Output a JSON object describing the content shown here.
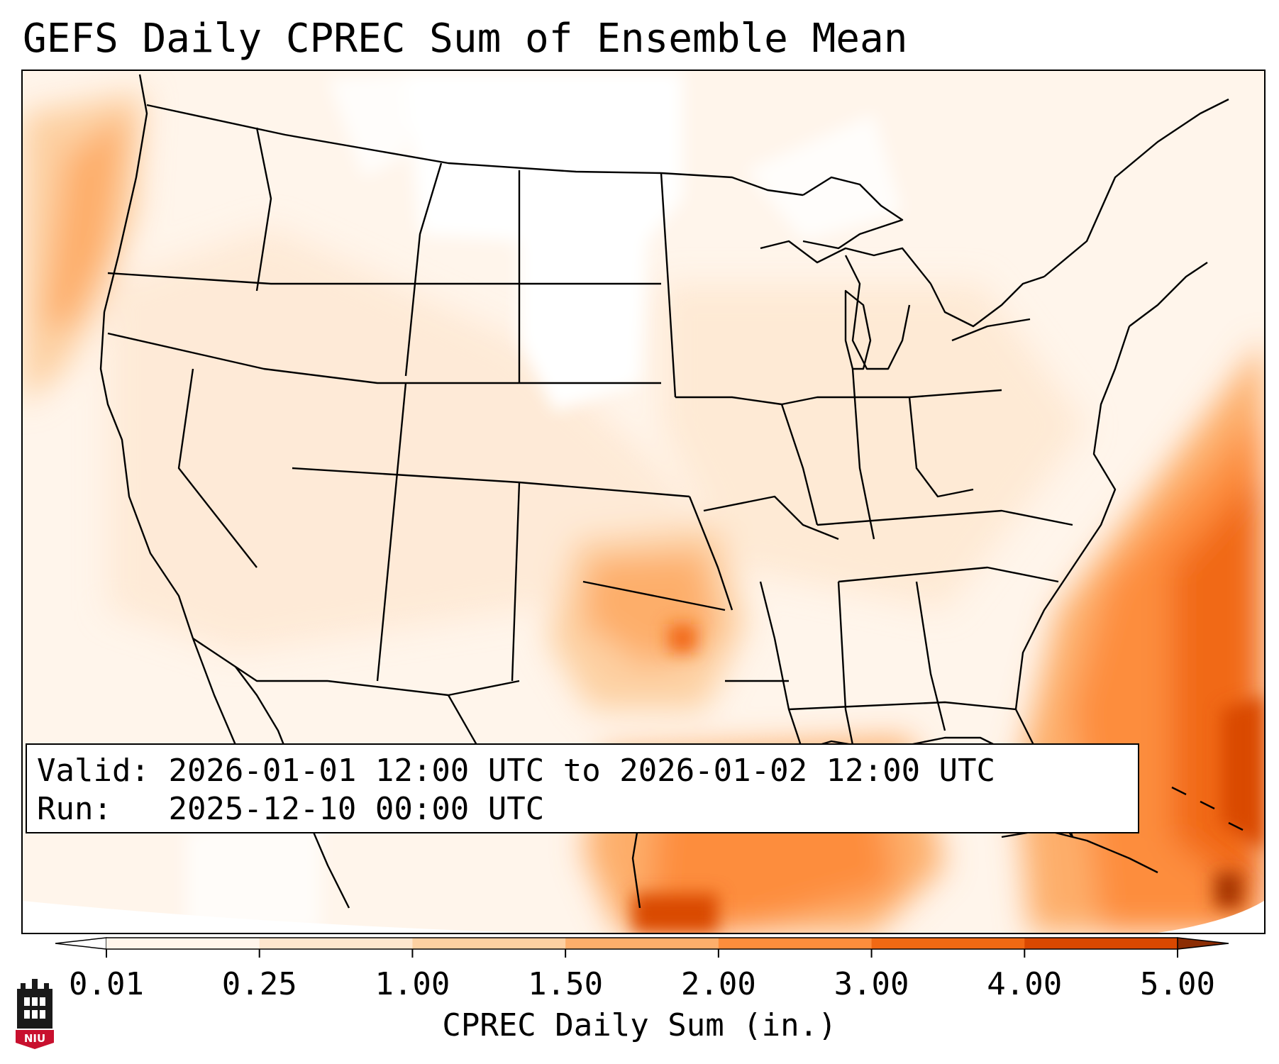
{
  "title": "GEFS Daily CPREC Sum of Ensemble Mean",
  "info": {
    "valid_label": "Valid:",
    "valid_value": "2026-01-01 12:00 UTC to 2026-01-02 12:00 UTC",
    "run_label": "Run:",
    "run_value": "2025-12-10 00:00 UTC"
  },
  "colorbar": {
    "label": "CPREC Daily Sum (in.)",
    "ticks": [
      "0.01",
      "0.25",
      "1.00",
      "1.50",
      "2.00",
      "3.00",
      "4.00",
      "5.00"
    ],
    "colors": [
      "#fff5eb",
      "#fee6ce",
      "#fdd0a2",
      "#fdae6b",
      "#fd8d3c",
      "#f16913",
      "#d94801"
    ],
    "under_color": "#ffffff",
    "over_color": "#8c2d04"
  },
  "logo": {
    "icon": "niu-building-icon",
    "text": "NIU"
  }
}
